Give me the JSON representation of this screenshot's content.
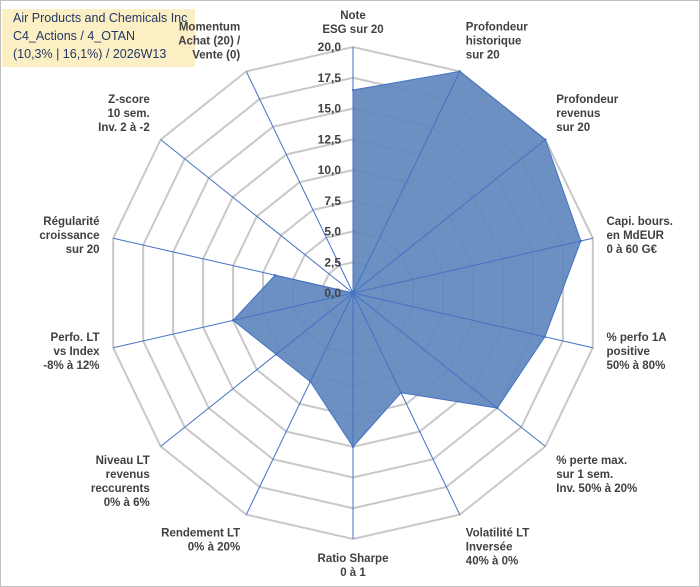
{
  "title": {
    "line1": "Air Products and Chemicals Inc",
    "line2": "C4_Actions / 4_OTAN",
    "line3": "(10,3% | 16,1%) / 2026W13"
  },
  "chart_data": {
    "type": "radar",
    "rmax": 20,
    "ticks": [
      "0,0",
      "2,5",
      "5,0",
      "7,5",
      "10,0",
      "12,5",
      "15,0",
      "17,5",
      "20,0"
    ],
    "axes": [
      {
        "lines": [
          "Note",
          "ESG sur 20"
        ],
        "value": 16.5
      },
      {
        "lines": [
          "Profondeur",
          "historique",
          "sur 20"
        ],
        "value": 20
      },
      {
        "lines": [
          "Profondeur",
          "revenus",
          "sur 20"
        ],
        "value": 20
      },
      {
        "lines": [
          "Capi. bours.",
          "en MdEUR",
          "0 à 60 G€"
        ],
        "value": 19
      },
      {
        "lines": [
          "% perfo 1A",
          "positive",
          "50% à 80%"
        ],
        "value": 16
      },
      {
        "lines": [
          "% perte max.",
          "sur 1 sem.",
          "Inv. 50% à 20%"
        ],
        "value": 15
      },
      {
        "lines": [
          "Volatilité LT",
          "Inversée",
          "40% à 0%"
        ],
        "value": 9
      },
      {
        "lines": [
          "Ratio Sharpe",
          "0 à 1"
        ],
        "value": 12.5
      },
      {
        "lines": [
          "Rendement LT",
          "0% à 20%"
        ],
        "value": 8
      },
      {
        "lines": [
          "Niveau LT",
          "revenus",
          "reccurents",
          "0% à 6%"
        ],
        "value": 8
      },
      {
        "lines": [
          "Perfo. LT",
          "vs Index",
          "-8% à 12%"
        ],
        "value": 10
      },
      {
        "lines": [
          "Régularité",
          "croissance",
          "sur 20"
        ],
        "value": 6.5
      },
      {
        "lines": [
          "Z-score",
          "10 sem.",
          "Inv. 2 à -2"
        ],
        "value": 0
      },
      {
        "lines": [
          "Momentum",
          "Achat (20) /",
          "Vente (0)"
        ],
        "value": 0
      }
    ],
    "fill_color": "#5f87bd",
    "line_color": "#4472c4",
    "grid_color": "#c8c8c8"
  }
}
